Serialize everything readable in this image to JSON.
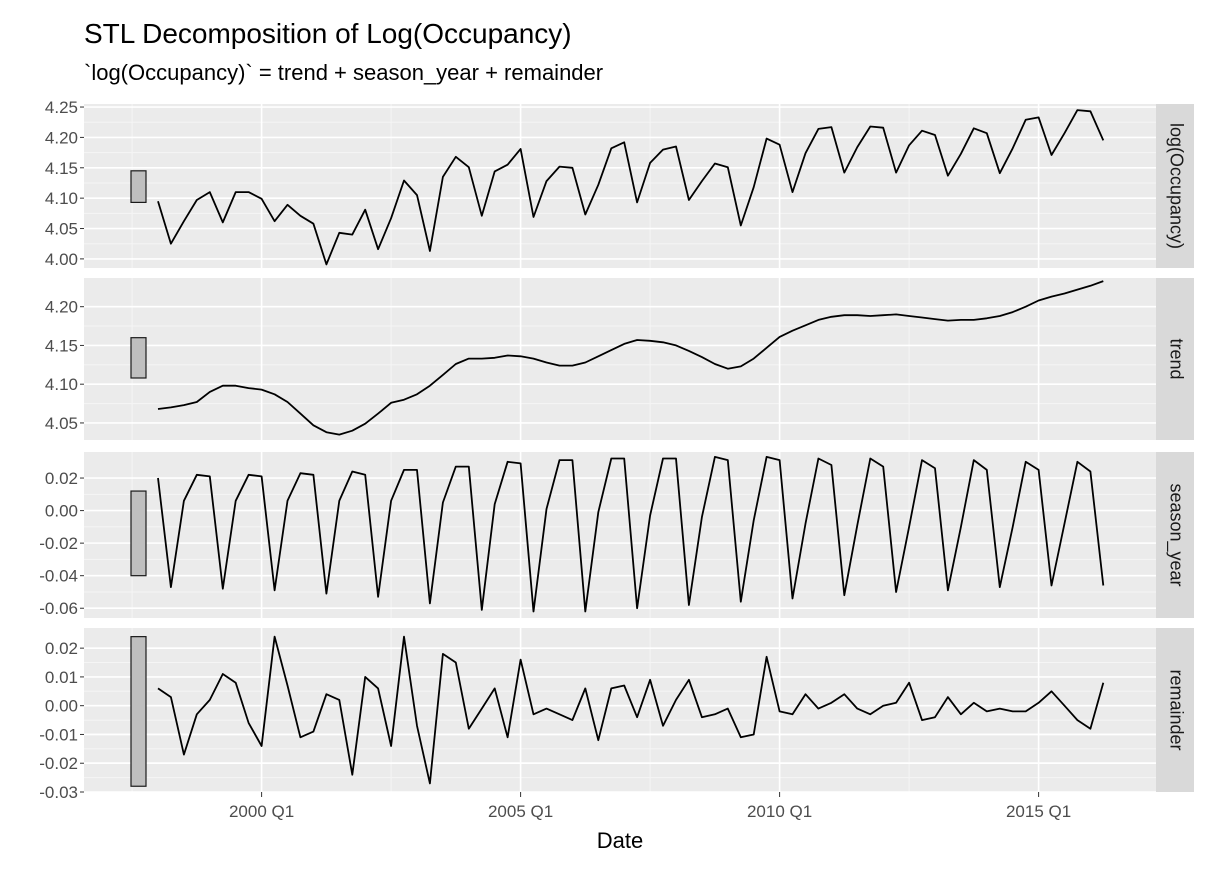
{
  "chart_data": {
    "type": "line",
    "title": "STL Decomposition of Log(Occupancy)",
    "subtitle": "`log(Occupancy)` = trend + season_year + remainder",
    "xlabel": "Date",
    "x_start_quarter": "1998 Q1",
    "x_ticks": [
      "2000 Q1",
      "2005 Q1",
      "2010 Q1",
      "2015 Q1"
    ],
    "grid": true,
    "panels": [
      {
        "name": "log(Occupancy)",
        "ylim": [
          3.985,
          4.255
        ],
        "yticks": [
          4.0,
          4.05,
          4.1,
          4.15,
          4.2,
          4.25
        ],
        "ytick_labels": [
          "4.00",
          "4.05",
          "4.10",
          "4.15",
          "4.20",
          "4.25"
        ],
        "scale_bar": [
          4.093,
          4.145
        ],
        "values": [
          4.095,
          4.025,
          4.062,
          4.097,
          4.11,
          4.06,
          4.11,
          4.11,
          4.099,
          4.062,
          4.089,
          4.071,
          4.058,
          3.991,
          4.043,
          4.04,
          4.081,
          4.016,
          4.067,
          4.129,
          4.105,
          4.013,
          4.135,
          4.168,
          4.151,
          4.071,
          4.144,
          4.155,
          4.181,
          4.069,
          4.128,
          4.152,
          4.15,
          4.073,
          4.122,
          4.182,
          4.192,
          4.093,
          4.158,
          4.18,
          4.185,
          4.097,
          4.128,
          4.157,
          4.151,
          4.055,
          4.118,
          4.198,
          4.188,
          4.11,
          4.174,
          4.214,
          4.217,
          4.142,
          4.184,
          4.218,
          4.216,
          4.142,
          4.187,
          4.211,
          4.204,
          4.137,
          4.173,
          4.215,
          4.207,
          4.141,
          4.182,
          4.229,
          4.233,
          4.171,
          4.207,
          4.245,
          4.243,
          4.195
        ]
      },
      {
        "name": "trend",
        "ylim": [
          4.028,
          4.237
        ],
        "yticks": [
          4.05,
          4.1,
          4.15,
          4.2
        ],
        "ytick_labels": [
          "4.05",
          "4.10",
          "4.15",
          "4.20"
        ],
        "scale_bar": [
          4.108,
          4.16
        ],
        "values": [
          4.068,
          4.07,
          4.073,
          4.077,
          4.09,
          4.098,
          4.098,
          4.095,
          4.093,
          4.087,
          4.077,
          4.062,
          4.047,
          4.038,
          4.035,
          4.04,
          4.049,
          4.062,
          4.076,
          4.08,
          4.087,
          4.098,
          4.112,
          4.126,
          4.133,
          4.133,
          4.134,
          4.137,
          4.136,
          4.133,
          4.128,
          4.124,
          4.124,
          4.128,
          4.136,
          4.144,
          4.152,
          4.157,
          4.156,
          4.154,
          4.15,
          4.143,
          4.135,
          4.126,
          4.12,
          4.123,
          4.133,
          4.147,
          4.161,
          4.169,
          4.176,
          4.183,
          4.187,
          4.189,
          4.189,
          4.188,
          4.189,
          4.19,
          4.188,
          4.186,
          4.184,
          4.182,
          4.183,
          4.183,
          4.185,
          4.188,
          4.193,
          4.2,
          4.208,
          4.213,
          4.217,
          4.222,
          4.227,
          4.233
        ]
      },
      {
        "name": "season_year",
        "ylim": [
          -0.066,
          0.036
        ],
        "yticks": [
          -0.06,
          -0.04,
          -0.02,
          0.0,
          0.02
        ],
        "ytick_labels": [
          "-0.06",
          "-0.04",
          "-0.02",
          "0.00",
          "0.02"
        ],
        "scale_bar": [
          -0.04,
          0.012
        ],
        "values": [
          0.02,
          -0.047,
          0.006,
          0.022,
          0.021,
          -0.048,
          0.006,
          0.022,
          0.021,
          -0.049,
          0.006,
          0.023,
          0.022,
          -0.051,
          0.006,
          0.024,
          0.022,
          -0.053,
          0.006,
          0.025,
          0.025,
          -0.057,
          0.005,
          0.027,
          0.027,
          -0.061,
          0.004,
          0.03,
          0.029,
          -0.062,
          0.001,
          0.031,
          0.031,
          -0.062,
          -0.001,
          0.032,
          0.032,
          -0.06,
          -0.003,
          0.032,
          0.032,
          -0.058,
          -0.004,
          0.033,
          0.031,
          -0.056,
          -0.006,
          0.033,
          0.031,
          -0.054,
          -0.008,
          0.032,
          0.028,
          -0.052,
          -0.009,
          0.032,
          0.027,
          -0.05,
          -0.01,
          0.031,
          0.026,
          -0.049,
          -0.01,
          0.031,
          0.025,
          -0.047,
          -0.01,
          0.03,
          0.025,
          -0.046,
          -0.008,
          0.03,
          0.024,
          -0.046
        ]
      },
      {
        "name": "remainder",
        "ylim": [
          -0.03,
          0.027
        ],
        "yticks": [
          -0.03,
          -0.02,
          -0.01,
          0.0,
          0.01,
          0.02
        ],
        "ytick_labels": [
          "-0.03",
          "-0.02",
          "-0.01",
          "0.00",
          "0.01",
          "0.02"
        ],
        "extra_ticks": [
          -0.02,
          -0.01
        ],
        "extra_tick_labels": [
          "-0.02",
          "-0.01"
        ],
        "scale_bar": [
          -0.028,
          0.024
        ],
        "values": [
          0.006,
          0.003,
          -0.017,
          -0.003,
          0.002,
          0.011,
          0.008,
          -0.006,
          -0.014,
          0.024,
          0.007,
          -0.011,
          -0.009,
          0.004,
          0.002,
          -0.024,
          0.01,
          0.006,
          -0.014,
          0.024,
          -0.007,
          -0.027,
          0.018,
          0.015,
          -0.008,
          -0.001,
          0.006,
          -0.011,
          0.016,
          -0.003,
          -0.001,
          -0.003,
          -0.005,
          0.006,
          -0.012,
          0.006,
          0.007,
          -0.004,
          0.009,
          -0.007,
          0.002,
          0.009,
          -0.004,
          -0.003,
          -0.001,
          -0.011,
          -0.01,
          0.017,
          -0.002,
          -0.003,
          0.004,
          -0.001,
          0.001,
          0.004,
          -0.001,
          -0.003,
          0.0,
          0.001,
          0.008,
          -0.005,
          -0.004,
          0.003,
          -0.003,
          0.001,
          -0.002,
          -0.001,
          -0.002,
          -0.002,
          0.001,
          0.005,
          0.0,
          -0.005,
          -0.008,
          0.008
        ]
      }
    ]
  }
}
